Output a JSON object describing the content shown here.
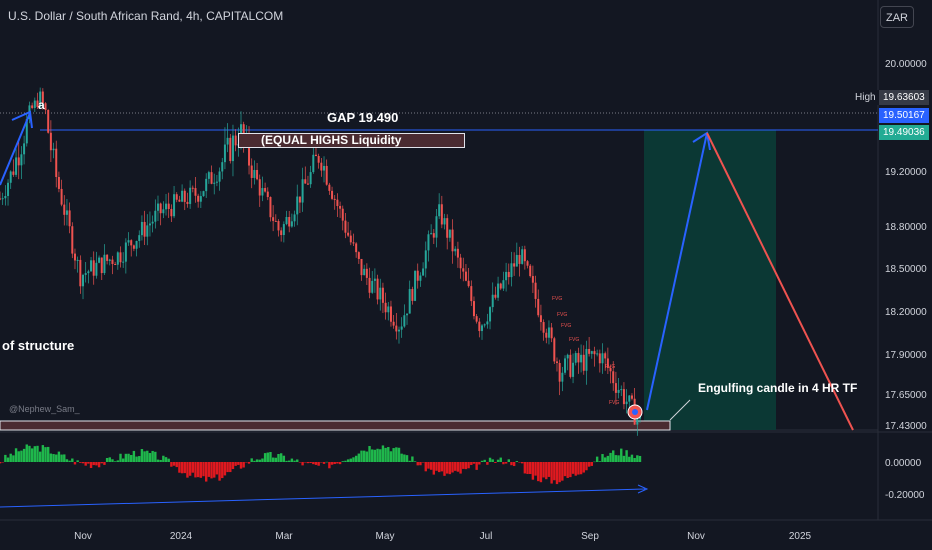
{
  "header": {
    "symbol_title": "U.S. Dollar / South African Rand, 4h, CAPITALCOM",
    "currency_button": "ZAR"
  },
  "watermark": "@Nephew_Sam_",
  "annotations": {
    "gap_label": "GAP 19.490",
    "equal_highs_label": "(EQUAL HIGHS Liquidity",
    "point_a_label": "a",
    "structure_label": "of structure",
    "engulfing_label": "Engulfing candle in 4 HR TF",
    "fvg_label": "FVG"
  },
  "price_tags": {
    "high_label": "High",
    "high_value": "19.63603",
    "mid_value": "19.50167",
    "gap_value": "19.49036"
  },
  "colors": {
    "background": "#131722",
    "bullish": "#26a69a",
    "bearish": "#ef5350",
    "blue_line": "#2962ff",
    "target_zone": "#0b3a36",
    "osc_green": "#1fb84c",
    "osc_red": "#e0191f"
  },
  "chart_data": {
    "type": "candlestick",
    "title": "U.S. Dollar / South African Rand, 4h, CAPITALCOM",
    "xlabel": "",
    "ylabel": "",
    "x_ticks": [
      "Nov",
      "2024",
      "Mar",
      "May",
      "Jul",
      "Sep",
      "Nov",
      "2025"
    ],
    "y_ticks": [
      "20.00000",
      "19.50000",
      "19.20000",
      "18.80000",
      "18.50000",
      "18.20000",
      "17.90000",
      "17.65000",
      "17.43000"
    ],
    "ylim": [
      17.43,
      20.2
    ],
    "grid": false,
    "key_levels": {
      "high": 19.63603,
      "level": 19.50167,
      "gap": 19.49036
    },
    "price_path": [
      {
        "date": "Oct 2023",
        "price": 19.0
      },
      {
        "date": "late Oct 2023",
        "price": 19.64
      },
      {
        "date": "Nov 2023",
        "price": 18.45
      },
      {
        "date": "Dec 2023",
        "price": 18.6
      },
      {
        "date": "Jan 2024",
        "price": 18.9
      },
      {
        "date": "Feb 2024",
        "price": 19.05
      },
      {
        "date": "late Feb 2024",
        "price": 19.4
      },
      {
        "date": "Mar 2024",
        "price": 18.75
      },
      {
        "date": "Apr 2024",
        "price": 19.3
      },
      {
        "date": "May 2024",
        "price": 18.5
      },
      {
        "date": "Jun 2024",
        "price": 18.1
      },
      {
        "date": "mid Jun 2024",
        "price": 18.9
      },
      {
        "date": "Jul 2024",
        "price": 18.1
      },
      {
        "date": "Aug 2024",
        "price": 18.6
      },
      {
        "date": "late Aug 2024",
        "price": 17.8
      },
      {
        "date": "Sep 2024",
        "price": 17.9
      },
      {
        "date": "late Sep 2024",
        "price": 17.45
      }
    ],
    "projection": [
      {
        "date": "late Sep 2024",
        "price": 17.43
      },
      {
        "date": "Nov 2024",
        "price": 19.49
      },
      {
        "date": "Jan 2025",
        "price": 17.43
      }
    ],
    "oscillator": {
      "y_ticks": [
        "0.00000",
        "-0.20000"
      ],
      "ylim": [
        -0.25,
        0.08
      ]
    }
  }
}
